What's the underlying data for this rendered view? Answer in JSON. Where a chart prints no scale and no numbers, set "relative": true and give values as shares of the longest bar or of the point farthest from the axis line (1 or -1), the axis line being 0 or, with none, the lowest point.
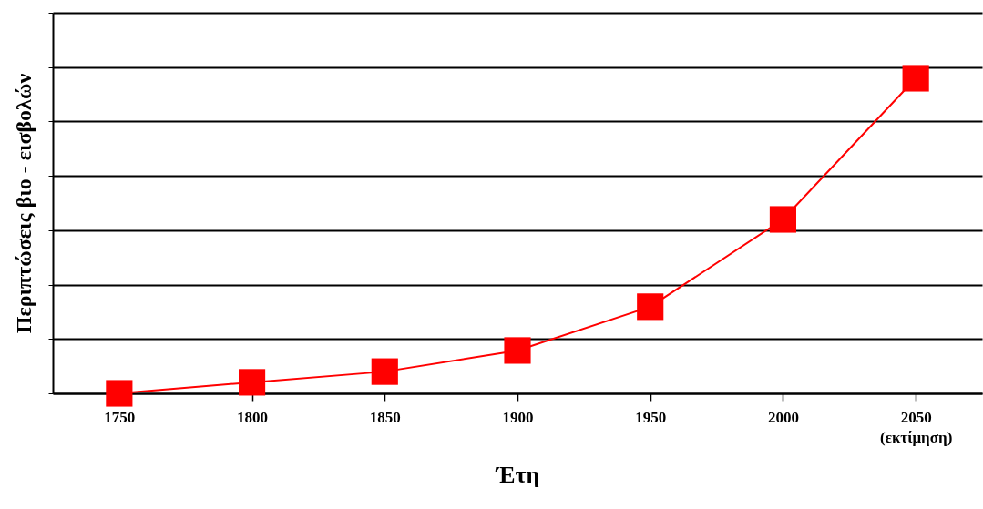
{
  "chart_data": {
    "type": "line",
    "relative": true,
    "xlabel": "Έτη",
    "ylabel": "Περιπτώσεις βιο - εισβολών",
    "categories": [
      "1750",
      "1800",
      "1850",
      "1900",
      "1950",
      "2000",
      "2050 (εκτίμηση)"
    ],
    "series": [
      {
        "color": "#ff0000",
        "values": [
          0,
          0.035,
          0.069,
          0.136,
          0.275,
          0.552,
          1
        ]
      }
    ],
    "marker": "square",
    "line_style": "solid",
    "grid": "y",
    "tick_labels": "x"
  }
}
